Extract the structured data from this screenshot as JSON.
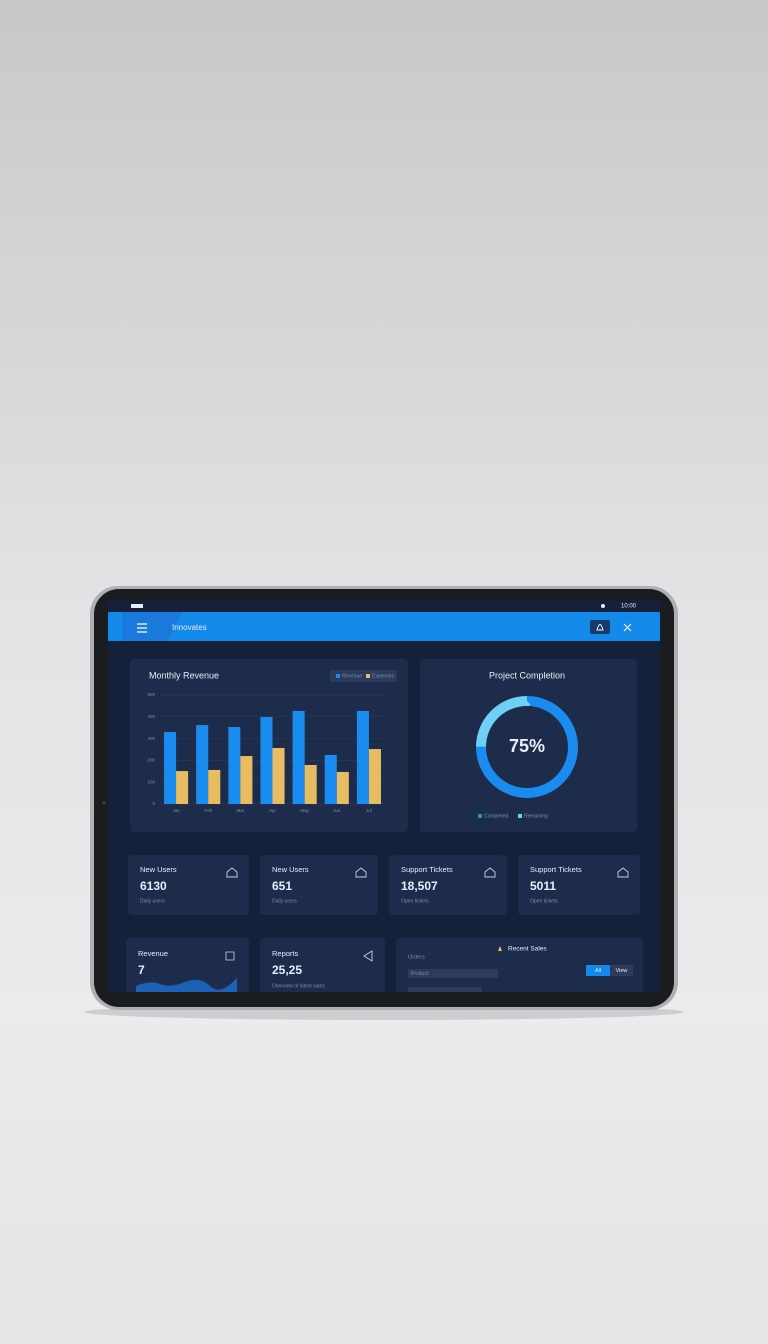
{
  "status_bar": {
    "time": "10:00"
  },
  "app_bar": {
    "title": "Innovates"
  },
  "chart_data": [
    {
      "type": "bar",
      "title": "Monthly Revenue",
      "categories": [
        "Jan",
        "Feb",
        "Mar",
        "Apr",
        "May",
        "Jun",
        "Jul"
      ],
      "series": [
        {
          "name": "Revenue",
          "color": "#1a8cf0",
          "values": [
            330,
            362,
            353,
            399,
            427,
            225,
            427
          ]
        },
        {
          "name": "Expenses",
          "color": "#e8bd62",
          "values": [
            151,
            156,
            220,
            257,
            179,
            147,
            252
          ]
        }
      ],
      "ylim": [
        0,
        500
      ],
      "yticks": [
        0,
        100,
        200,
        300,
        400,
        500
      ],
      "grid": true
    },
    {
      "type": "donut",
      "title": "Project Completion",
      "categories": [
        "Completed",
        "Remaining"
      ],
      "values": [
        75,
        25
      ],
      "value_labels": [
        "75%",
        null
      ],
      "colors": [
        "#1a8cf0",
        "#6fd0f5"
      ]
    }
  ],
  "stats": [
    {
      "title": "New Users",
      "value": "6130",
      "caption": "Daily users"
    },
    {
      "title": "New Users",
      "value": "651",
      "caption": "Daily users"
    },
    {
      "title": "Support Tickets",
      "value": "18,507",
      "caption": "Open tickets"
    },
    {
      "title": "Support Tickets",
      "value": "5011",
      "caption": "Open tickets"
    }
  ],
  "bottom_cards": {
    "revenue": {
      "title": "Revenue",
      "value": "7"
    },
    "reports": {
      "title": "Reports",
      "value": "25,25",
      "caption": "Overview of latest sales"
    },
    "recent": {
      "title": "Recent Sales",
      "subtitle": "Orders",
      "row": "Product",
      "tabs": [
        "All",
        "View"
      ]
    }
  }
}
